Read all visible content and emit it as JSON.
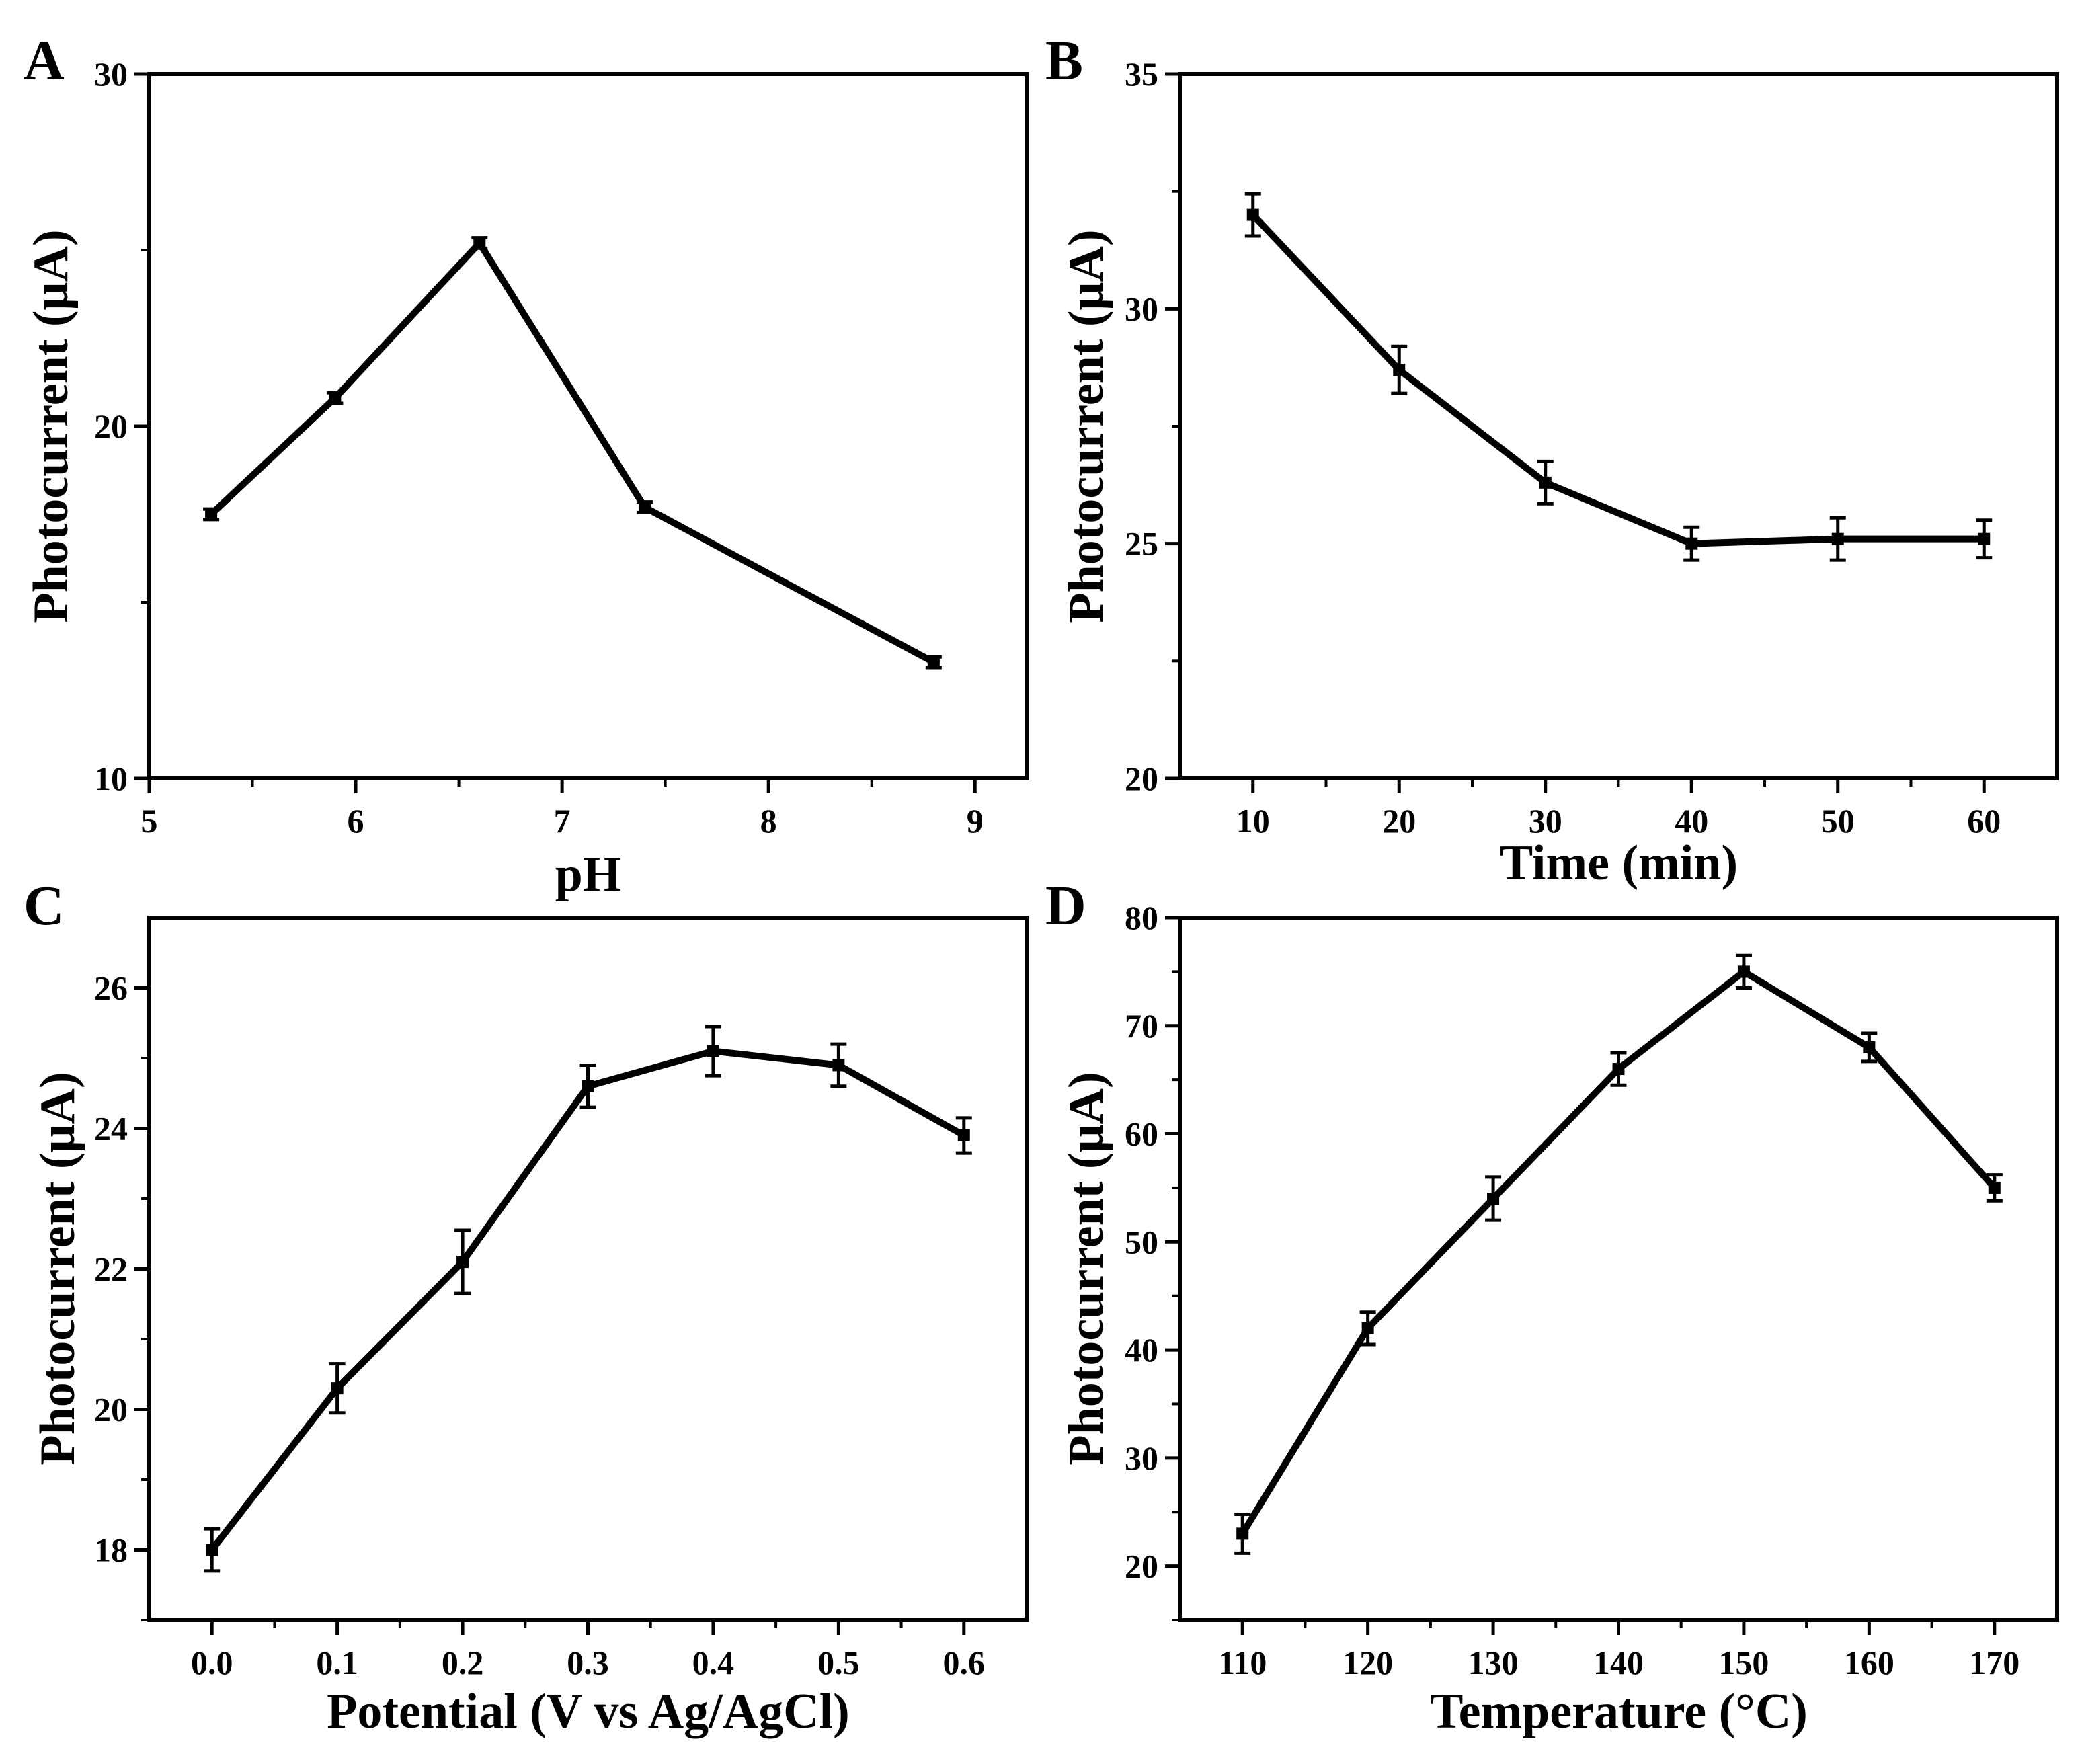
{
  "chart_data": [
    {
      "type": "line",
      "panel": "A",
      "xlabel": "pH",
      "ylabel": "Photocurrent (μA)",
      "xlim": [
        5,
        9.25
      ],
      "ylim": [
        10,
        30
      ],
      "xticks": [
        "5",
        "6",
        "7",
        "8",
        "9"
      ],
      "yticks": [
        "10",
        "20",
        "30"
      ],
      "x": [
        5.3,
        5.9,
        6.6,
        7.4,
        8.8
      ],
      "y": [
        17.5,
        20.8,
        25.2,
        17.7,
        13.3
      ],
      "err": [
        0.15,
        0.15,
        0.15,
        0.15,
        0.15
      ]
    },
    {
      "type": "line",
      "panel": "B",
      "xlabel": "Time (min)",
      "ylabel": "Photocurrent (μA)",
      "xlim": [
        5,
        65
      ],
      "ylim": [
        20,
        35
      ],
      "xticks": [
        "10",
        "20",
        "30",
        "40",
        "50",
        "60"
      ],
      "yticks": [
        "20",
        "25",
        "30",
        "35"
      ],
      "x": [
        10,
        20,
        30,
        40,
        50,
        60
      ],
      "y": [
        32.0,
        28.7,
        26.3,
        25.0,
        25.1,
        25.1
      ],
      "err": [
        0.45,
        0.5,
        0.45,
        0.35,
        0.45,
        0.4
      ]
    },
    {
      "type": "line",
      "panel": "C",
      "xlabel": "Potential (V vs Ag/AgCl)",
      "ylabel": "Photocurrent (μA)",
      "xlim": [
        -0.05,
        0.65
      ],
      "ylim": [
        17,
        27
      ],
      "xticks": [
        "0.0",
        "0.1",
        "0.2",
        "0.3",
        "0.4",
        "0.5",
        "0.6"
      ],
      "yticks": [
        "18",
        "20",
        "22",
        "24",
        "26"
      ],
      "x": [
        0.0,
        0.1,
        0.2,
        0.3,
        0.4,
        0.5,
        0.6
      ],
      "y": [
        18.0,
        20.3,
        22.1,
        24.6,
        25.1,
        24.9,
        23.9
      ],
      "err": [
        0.3,
        0.35,
        0.45,
        0.3,
        0.35,
        0.3,
        0.25
      ]
    },
    {
      "type": "line",
      "panel": "D",
      "xlabel": "Temperature (°C)",
      "ylabel": "Photocurrent (μA)",
      "xlim": [
        105,
        175
      ],
      "ylim": [
        15,
        80
      ],
      "xticks": [
        "110",
        "120",
        "130",
        "140",
        "150",
        "160",
        "170"
      ],
      "yticks": [
        "20",
        "30",
        "40",
        "50",
        "60",
        "70",
        "80"
      ],
      "x": [
        110,
        120,
        130,
        140,
        150,
        160,
        170
      ],
      "y": [
        23,
        42,
        54,
        66,
        75,
        68,
        55
      ],
      "err": [
        1.8,
        1.5,
        2.0,
        1.5,
        1.5,
        1.3,
        1.2
      ]
    }
  ]
}
